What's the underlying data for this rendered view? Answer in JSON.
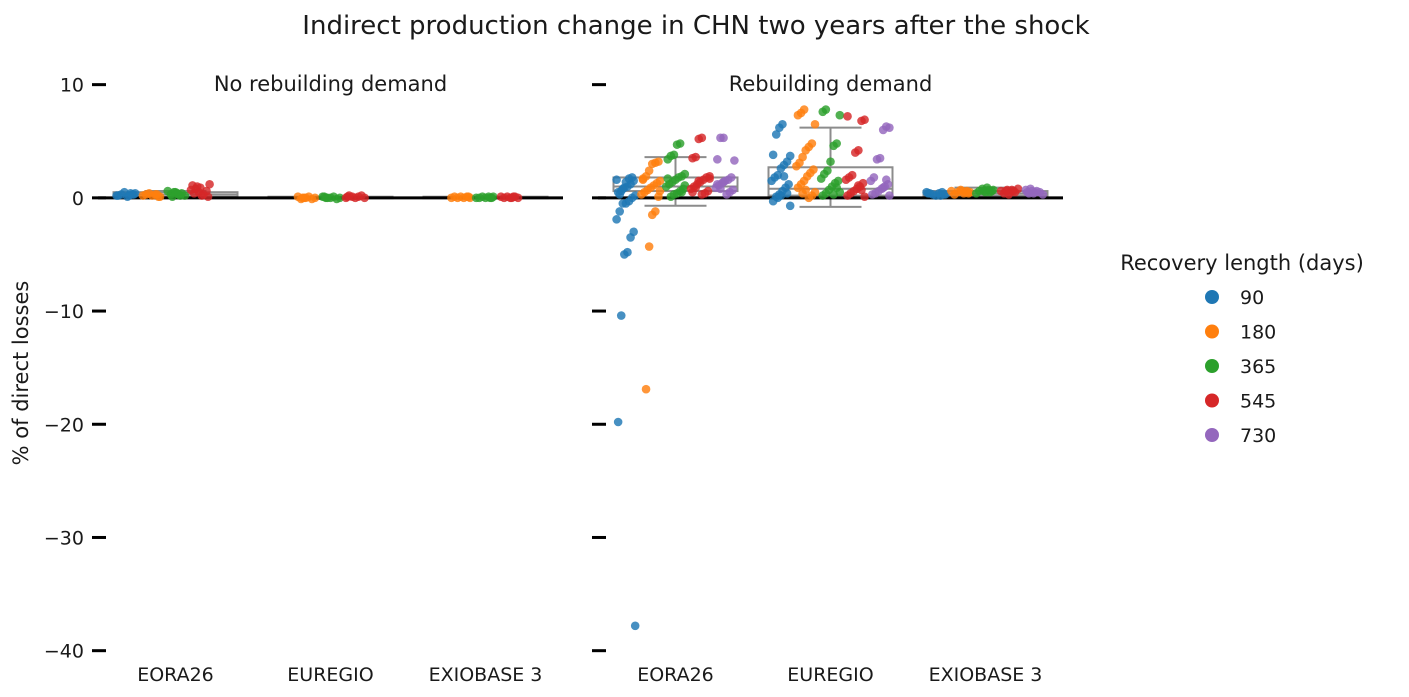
{
  "chart_data": {
    "type": "scatter",
    "title": "Indirect production change in CHN two years after the shock",
    "ylabel": "% of direct losses",
    "ylim": [
      -41,
      12
    ],
    "yticks": [
      10,
      0,
      -10,
      -20,
      -30,
      -40
    ],
    "categories": [
      "EORA26",
      "EUREGIO",
      "EXIOBASE 3"
    ],
    "legend": {
      "title": "Recovery length (days)",
      "placement": "right",
      "entries": [
        "90",
        "180",
        "365",
        "545",
        "730"
      ]
    },
    "colors": [
      "#1f77b4",
      "#ff7f0e",
      "#2ca02c",
      "#d62728",
      "#9467bd"
    ],
    "panels": [
      {
        "title": "No rebuilding demand",
        "boxes": [
          {
            "category": "EORA26",
            "q1": 0.1,
            "median": 0.3,
            "q3": 0.5,
            "whisker_low": 0.0,
            "whisker_high": 0.6
          },
          {
            "category": "EUREGIO",
            "q1": 0.0,
            "median": 0.0,
            "q3": 0.1,
            "whisker_low": -0.1,
            "whisker_high": 0.1
          },
          {
            "category": "EXIOBASE 3",
            "q1": 0.0,
            "median": 0.0,
            "q3": 0.1,
            "whisker_low": 0.0,
            "whisker_high": 0.1
          }
        ],
        "points": [
          [
            [
              0.2,
              0.3,
              0.4,
              0.1,
              0.5,
              0.3,
              0.2,
              0.4,
              0.3,
              0.2
            ],
            [
              0.1,
              0.3,
              0.2,
              0.4,
              0.3,
              0.2,
              0.1,
              0.3
            ],
            [
              0.2,
              0.4,
              0.5,
              0.3,
              0.6,
              0.2,
              0.4,
              0.3,
              0.5,
              0.1
            ],
            [
              0.2,
              0.5,
              0.8,
              1.1,
              1.2,
              0.6,
              0.3,
              0.9,
              1.0,
              0.4,
              0.7,
              0.1
            ],
            []
          ],
          [
            [],
            [
              0.0,
              -0.1,
              0.1,
              0.0,
              -0.1,
              0.1,
              0.0,
              0.0
            ],
            [
              0.0,
              0.1,
              0.0,
              -0.1,
              0.1,
              0.0,
              0.0,
              0.1
            ],
            [
              0.1,
              0.0,
              0.2,
              0.1,
              0.0,
              0.1,
              0.2,
              0.0
            ],
            []
          ],
          [
            [],
            [
              0.0,
              0.1,
              0.0,
              0.1,
              0.0,
              0.1,
              0.0,
              0.1
            ],
            [
              0.0,
              0.1,
              0.0,
              0.1,
              0.0,
              0.0,
              0.1,
              0.0
            ],
            [
              0.1,
              0.0,
              0.1,
              0.0,
              0.1,
              0.0,
              0.1,
              0.0
            ],
            []
          ]
        ]
      },
      {
        "title": "Rebuilding demand",
        "boxes": [
          {
            "category": "EORA26",
            "q1": 0.6,
            "median": 1.0,
            "q3": 1.8,
            "whisker_low": -0.7,
            "whisker_high": 3.6
          },
          {
            "category": "EUREGIO",
            "q1": 0.2,
            "median": 0.8,
            "q3": 2.7,
            "whisker_low": -0.8,
            "whisker_high": 6.2
          },
          {
            "category": "EXIOBASE 3",
            "q1": 0.2,
            "median": 0.4,
            "q3": 0.6,
            "whisker_low": 0.1,
            "whisker_high": 0.9
          }
        ],
        "points": [
          [
            [
              1.6,
              1.5,
              1.2,
              1.0,
              0.9,
              0.6,
              0.5,
              0.2,
              0.0,
              -0.3,
              -0.5,
              -0.5,
              -1.2,
              -1.9,
              -3.0,
              -3.5,
              -4.8,
              -5.0,
              -10.4,
              -19.8,
              -37.8,
              1.8,
              1.7,
              1.4,
              0.8,
              0.3
            ],
            [
              3.2,
              3.1,
              3.0,
              2.4,
              1.9,
              1.7,
              1.5,
              1.3,
              1.1,
              0.9,
              0.7,
              0.5,
              0.3,
              0.1,
              -1.2,
              -1.5,
              -4.3,
              -16.9,
              1.6,
              0.6
            ],
            [
              4.8,
              4.7,
              3.8,
              3.7,
              3.4,
              2.1,
              1.9,
              1.8,
              1.6,
              1.4,
              1.2,
              1.0,
              0.8,
              0.6,
              0.4,
              0.3,
              0.1,
              1.7,
              1.1,
              0.5
            ],
            [
              5.3,
              5.2,
              3.6,
              3.5,
              1.9,
              1.8,
              1.6,
              1.4,
              1.2,
              1.0,
              0.8,
              0.6,
              0.4,
              0.3,
              1.5,
              0.9,
              0.5,
              1.7
            ],
            [
              5.3,
              5.3,
              3.4,
              3.3,
              1.8,
              1.6,
              1.5,
              1.3,
              1.1,
              0.9,
              0.7,
              0.5,
              0.3,
              1.4,
              0.8,
              1.2
            ]
          ],
          [
            [
              6.5,
              6.2,
              5.6,
              3.8,
              3.7,
              3.2,
              2.9,
              2.6,
              2.0,
              1.8,
              1.5,
              1.2,
              0.9,
              0.6,
              0.3,
              0.1,
              -0.3,
              -0.7,
              0.4,
              1.9,
              0.2,
              0.0
            ],
            [
              7.8,
              7.5,
              7.3,
              6.5,
              4.8,
              4.5,
              4.2,
              3.6,
              3.1,
              2.8,
              2.5,
              2.2,
              1.9,
              1.5,
              1.2,
              0.9,
              0.5,
              0.2,
              0.0,
              0.7,
              0.4
            ],
            [
              7.8,
              7.6,
              7.3,
              4.8,
              4.6,
              3.2,
              2.4,
              2.1,
              1.7,
              1.5,
              1.3,
              1.0,
              0.7,
              0.4,
              0.2,
              0.5,
              0.9,
              0.3
            ],
            [
              7.2,
              6.9,
              6.8,
              4.2,
              4.0,
              2.0,
              1.8,
              1.6,
              1.3,
              1.0,
              0.8,
              0.6,
              0.4,
              0.2,
              0.1,
              0.7,
              1.1
            ],
            [
              6.2,
              6.3,
              6.0,
              3.5,
              3.4,
              1.8,
              1.5,
              1.2,
              1.0,
              0.8,
              0.6,
              0.4,
              0.3,
              0.2,
              1.6,
              0.9
            ]
          ],
          [
            [
              0.4,
              0.3,
              0.5,
              0.4,
              0.2,
              0.3,
              0.4,
              0.5,
              0.3,
              0.2
            ],
            [
              0.5,
              0.6,
              0.4,
              0.7,
              0.5,
              0.3,
              0.6,
              0.4,
              0.5,
              0.6
            ],
            [
              0.6,
              0.7,
              0.5,
              0.8,
              0.6,
              0.4,
              0.7,
              0.5,
              0.9,
              0.6
            ],
            [
              0.6,
              0.5,
              0.7,
              0.4,
              0.6,
              0.8,
              0.5,
              0.7,
              0.3,
              0.6
            ],
            [
              0.5,
              0.6,
              0.4,
              0.7,
              0.3,
              0.5,
              0.6,
              0.4,
              0.8,
              0.5
            ]
          ]
        ]
      }
    ]
  }
}
